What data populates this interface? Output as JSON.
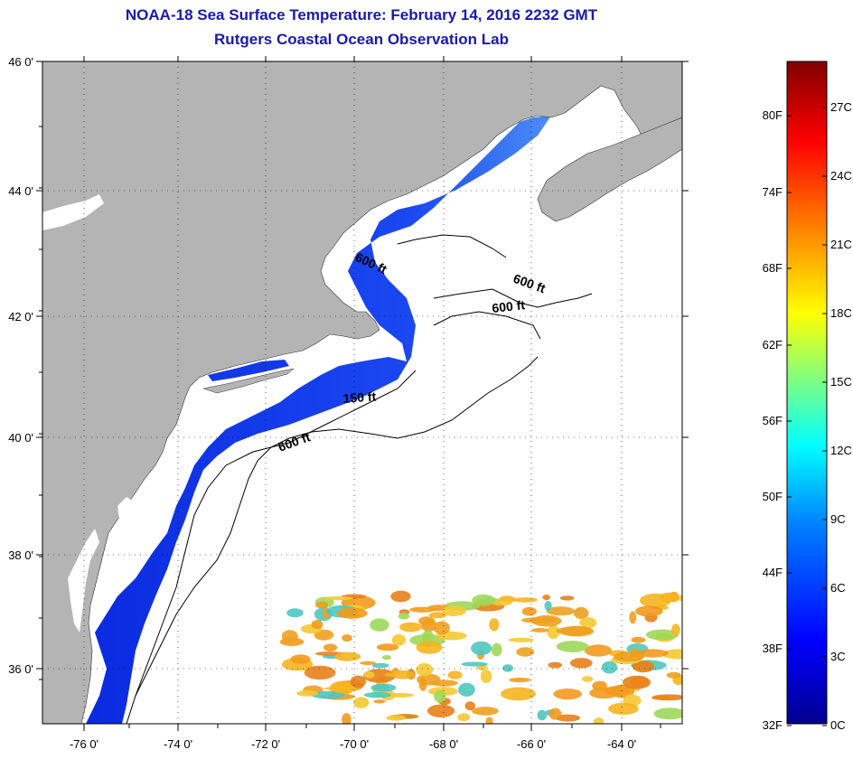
{
  "title": {
    "line1": "NOAA-18 Sea Surface Temperature:  February 14, 2016 2232 GMT",
    "line2": "Rutgers Coastal Ocean Observation Lab"
  },
  "map": {
    "lon_ticks": [
      "-76 0'",
      "-74 0'",
      "-72 0'",
      "-70 0'",
      "-68 0'",
      "-66 0'",
      "-64 0'"
    ],
    "lat_ticks": [
      "46 0'",
      "44 0'",
      "42 0'",
      "40 0'",
      "38 0'",
      "36 0'"
    ],
    "contour_labels": [
      "600 ft",
      "600 ft",
      "600 ft",
      "150 ft",
      "600 ft"
    ],
    "colors": {
      "land": "#b4b4b4",
      "ocean_nodata": "#ffffff",
      "cold_water": "#1b3cf0",
      "warm_water": "#f29a1c"
    }
  },
  "colorbar": {
    "fahrenheit_labels": [
      "80F",
      "74F",
      "68F",
      "62F",
      "56F",
      "50F",
      "44F",
      "38F",
      "32F"
    ],
    "celsius_labels": [
      "27C",
      "24C",
      "21C",
      "18C",
      "15C",
      "12C",
      "9C",
      "6C",
      "3C",
      "0C"
    ],
    "range_celsius": [
      0,
      29
    ],
    "gradient": [
      "#00008f",
      "#0000ff",
      "#0080ff",
      "#00ffff",
      "#80ff80",
      "#ffff00",
      "#ff8000",
      "#ff0000",
      "#800000"
    ]
  }
}
